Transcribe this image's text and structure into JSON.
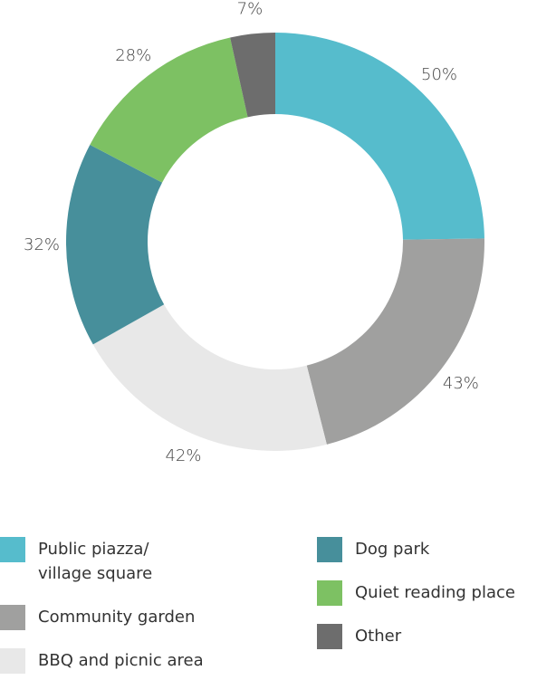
{
  "chart_data": {
    "type": "donut",
    "categories": [
      "Public piazza/ village square",
      "Community garden",
      "BBQ and picnic area",
      "Dog park",
      "Quiet reading place",
      "Other"
    ],
    "values": [
      50,
      43,
      42,
      32,
      28,
      7
    ],
    "value_labels": [
      "50%",
      "43%",
      "42%",
      "32%",
      "28%",
      "7%"
    ],
    "colors": [
      "#56bccc",
      "#a0a09f",
      "#e8e8e8",
      "#478f9b",
      "#7dc163",
      "#6d6d6d"
    ],
    "legend": "bottom"
  }
}
